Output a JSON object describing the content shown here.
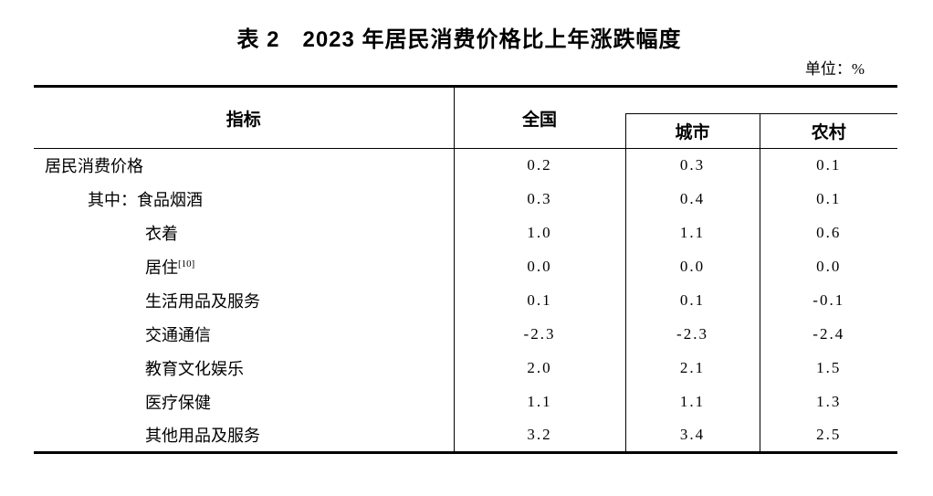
{
  "page": {
    "background_color": "#ffffff",
    "text_color": "#000000",
    "border_color": "#000000"
  },
  "title": "表 2　2023 年居民消费价格比上年涨跌幅度",
  "unit_label": "单位：%",
  "table": {
    "header": {
      "indicator": "指标",
      "national": "全国",
      "city": "城市",
      "rural": "农村"
    },
    "rows": [
      {
        "label": "居民消费价格",
        "indent": 0,
        "values": [
          "0.2",
          "0.3",
          "0.1"
        ]
      },
      {
        "label": "其中：食品烟酒",
        "indent": 1,
        "values": [
          "0.3",
          "0.4",
          "0.1"
        ]
      },
      {
        "label": "衣着",
        "indent": 2,
        "values": [
          "1.0",
          "1.1",
          "0.6"
        ]
      },
      {
        "label": "居住",
        "sup": "[10]",
        "indent": 2,
        "values": [
          "0.0",
          "0.0",
          "0.0"
        ]
      },
      {
        "label": "生活用品及服务",
        "indent": 2,
        "values": [
          "0.1",
          "0.1",
          "-0.1"
        ]
      },
      {
        "label": "交通通信",
        "indent": 2,
        "values": [
          "-2.3",
          "-2.3",
          "-2.4"
        ]
      },
      {
        "label": "教育文化娱乐",
        "indent": 2,
        "values": [
          "2.0",
          "2.1",
          "1.5"
        ]
      },
      {
        "label": "医疗保健",
        "indent": 2,
        "values": [
          "1.1",
          "1.1",
          "1.3"
        ]
      },
      {
        "label": "其他用品及服务",
        "indent": 2,
        "values": [
          "3.2",
          "3.4",
          "2.5"
        ]
      }
    ]
  }
}
